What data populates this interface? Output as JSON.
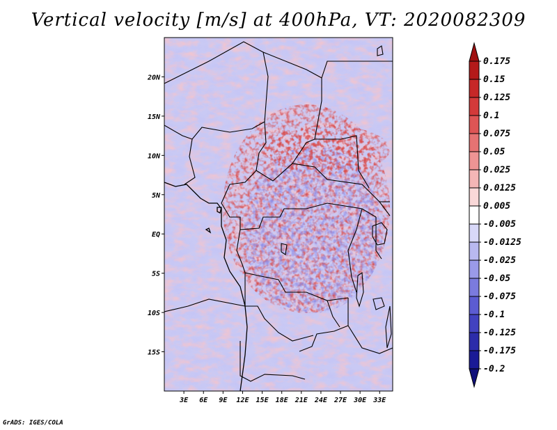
{
  "title": "Vertical velocity [m/s] at 400hPa, VT: 2020082309",
  "credit": "GrADS: IGES/COLA",
  "map": {
    "lon_range": [
      0,
      35
    ],
    "lat_range": [
      -20,
      25
    ],
    "lat_ticks": [
      {
        "value": 20,
        "label": "20N"
      },
      {
        "value": 15,
        "label": "15N"
      },
      {
        "value": 10,
        "label": "10N"
      },
      {
        "value": 5,
        "label": "5N"
      },
      {
        "value": 0,
        "label": "EQ"
      },
      {
        "value": -5,
        "label": "5S"
      },
      {
        "value": -10,
        "label": "10S"
      },
      {
        "value": -15,
        "label": "15S"
      }
    ],
    "lon_ticks": [
      {
        "value": 3,
        "label": "3E"
      },
      {
        "value": 6,
        "label": "6E"
      },
      {
        "value": 9,
        "label": "9E"
      },
      {
        "value": 12,
        "label": "12E"
      },
      {
        "value": 15,
        "label": "15E"
      },
      {
        "value": 18,
        "label": "18E"
      },
      {
        "value": 21,
        "label": "21E"
      },
      {
        "value": 24,
        "label": "24E"
      },
      {
        "value": 27,
        "label": "27E"
      },
      {
        "value": 30,
        "label": "30E"
      },
      {
        "value": 33,
        "label": "33E"
      }
    ]
  },
  "colorbar": {
    "labels": [
      "0.175",
      "0.15",
      "0.125",
      "0.1",
      "0.075",
      "0.05",
      "0.025",
      "0.0125",
      "0.005",
      "-0.005",
      "-0.0125",
      "-0.025",
      "-0.05",
      "-0.075",
      "-0.1",
      "-0.125",
      "-0.175",
      "-0.2"
    ],
    "colors": [
      "#a01010",
      "#b41a1a",
      "#c62828",
      "#d33a3a",
      "#de5555",
      "#e67373",
      "#ee9494",
      "#f4b6b6",
      "#f9d8d8",
      "#ffffff",
      "#d8d8f8",
      "#b9b9f0",
      "#9a9ae8",
      "#7b7bde",
      "#5c5cd2",
      "#4242c0",
      "#2c2caa",
      "#1a1a96",
      "#10107a"
    ]
  }
}
